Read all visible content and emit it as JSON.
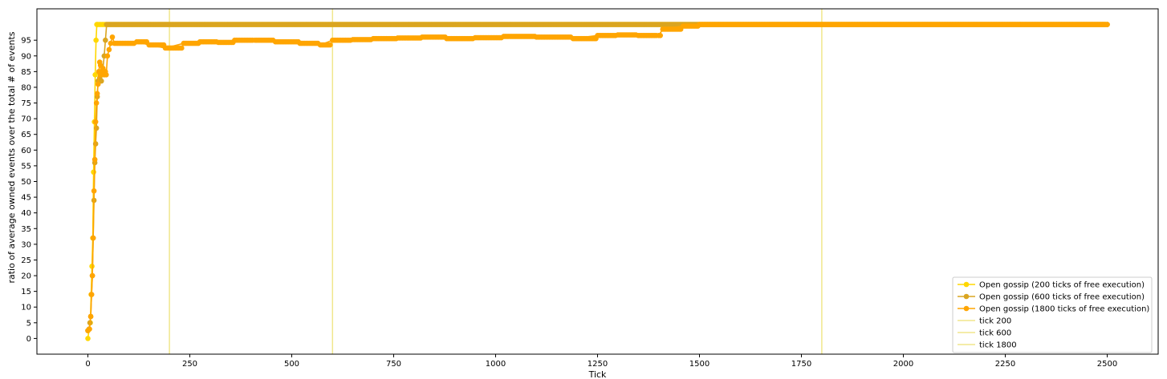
{
  "chart_data": {
    "type": "line",
    "title": "",
    "xlabel": "Tick",
    "ylabel": "ratio of average owned events over the total # of events",
    "xlim": [
      -125,
      2625
    ],
    "ylim": [
      -5,
      105
    ],
    "xticks": [
      0,
      250,
      500,
      750,
      1000,
      1250,
      1500,
      1750,
      2000,
      2250,
      2500
    ],
    "yticks": [
      0,
      5,
      10,
      15,
      20,
      25,
      30,
      35,
      40,
      45,
      50,
      55,
      60,
      65,
      70,
      75,
      80,
      85,
      90,
      95
    ],
    "grid": false,
    "legend_position": "bottom-right",
    "colors": {
      "s200": "#ffd700",
      "s600": "#daa520",
      "s1800": "#ffa500",
      "vline": "#f0e68c"
    },
    "series": [
      {
        "name": "Open gossip (200 ticks of free execution)",
        "color_key": "s200",
        "x": [
          0,
          3,
          6,
          8,
          10,
          12,
          14,
          16,
          18,
          20,
          22,
          24,
          2500
        ],
        "y": [
          0,
          3,
          5,
          14,
          23,
          32,
          53,
          69,
          84,
          95,
          100,
          100,
          100
        ]
      },
      {
        "name": "Open gossip (600 ticks of free execution)",
        "color_key": "s600",
        "x": [
          0,
          3,
          5,
          7,
          9,
          11,
          13,
          15,
          17,
          19,
          21,
          23,
          25,
          27,
          29,
          31,
          33,
          35,
          37,
          40,
          43,
          46,
          2500
        ],
        "y": [
          2.5,
          3,
          5,
          7,
          14,
          20,
          32,
          44,
          56,
          62,
          67,
          77,
          82,
          85,
          83,
          84,
          82,
          85,
          86,
          90,
          95,
          100,
          100
        ]
      },
      {
        "name": "Open gossip (1800 ticks of free execution)",
        "color_key": "s1800",
        "x": [
          0,
          4,
          7,
          9,
          11,
          13,
          15,
          17,
          19,
          21,
          23,
          25,
          27,
          29,
          31,
          33,
          35,
          37,
          39,
          41,
          43,
          45,
          48,
          52,
          56,
          60,
          65,
          120,
          150,
          190,
          235,
          275,
          320,
          360,
          410,
          460,
          520,
          570,
          600,
          650,
          700,
          760,
          820,
          880,
          950,
          1020,
          1100,
          1190,
          1250,
          1300,
          1350,
          1400,
          1410,
          1460,
          1500,
          2500
        ],
        "y": [
          2.5,
          3,
          7,
          14,
          20,
          32,
          47,
          57,
          69,
          75,
          78,
          81,
          85,
          88,
          87,
          84,
          85,
          86,
          84,
          84,
          85,
          84,
          90,
          92,
          94,
          96,
          94,
          94.5,
          93.5,
          92.5,
          94,
          94.5,
          94.3,
          95,
          95,
          94.5,
          94,
          93.5,
          95,
          95.2,
          95.5,
          95.7,
          96,
          95.5,
          95.8,
          96.2,
          96,
          95.5,
          96.5,
          96.7,
          96.5,
          96.5,
          98.5,
          99.5,
          100,
          100
        ]
      }
    ],
    "vlines": [
      {
        "x": 200,
        "label": "tick 200"
      },
      {
        "x": 600,
        "label": "tick 600"
      },
      {
        "x": 1800,
        "label": "tick 1800"
      }
    ]
  }
}
